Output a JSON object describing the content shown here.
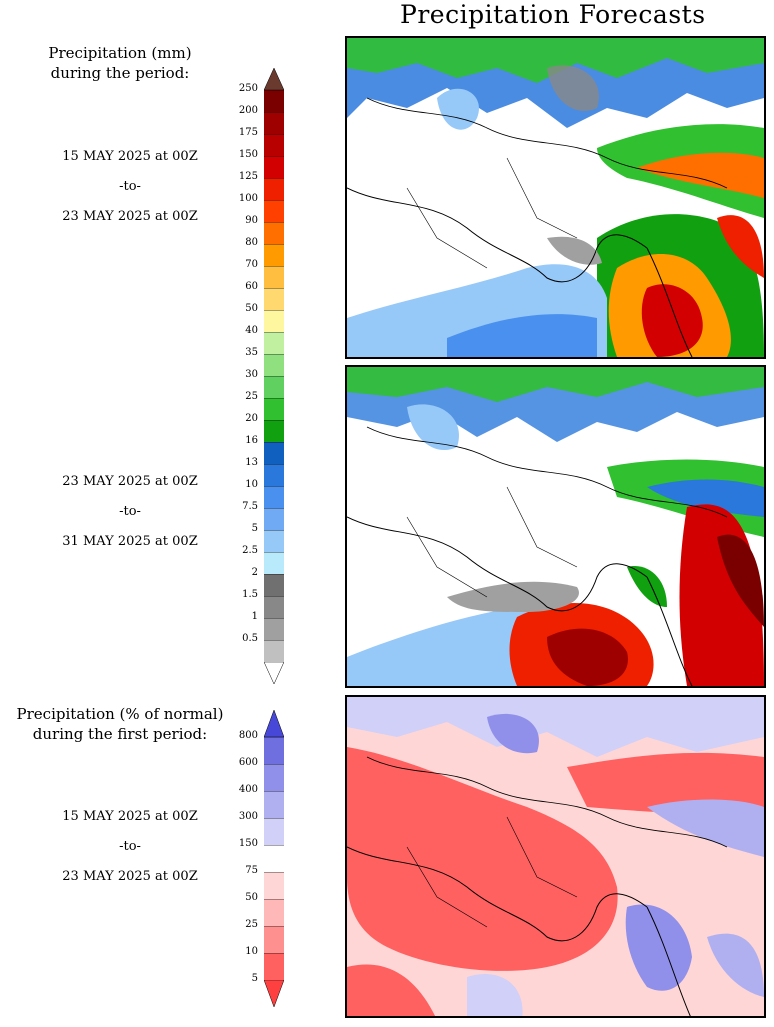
{
  "title": "Precipitation Forecasts",
  "legend_mm": {
    "heading": [
      "Precipitation (mm)",
      "during the period:"
    ],
    "ticks": [
      "250",
      "200",
      "175",
      "150",
      "125",
      "100",
      "90",
      "80",
      "70",
      "60",
      "50",
      "40",
      "35",
      "30",
      "25",
      "20",
      "16",
      "13",
      "10",
      "7.5",
      "5",
      "2.5",
      "2",
      "1.5",
      "1",
      "0.5"
    ],
    "colors": [
      "#7a0000",
      "#9e0000",
      "#b80000",
      "#d20000",
      "#ee2000",
      "#ff4000",
      "#ff6f00",
      "#ff9a00",
      "#ffbe40",
      "#ffd870",
      "#fff6a0",
      "#c0f0a0",
      "#90e080",
      "#60d060",
      "#30c030",
      "#10a010",
      "#1060c0",
      "#2a78dc",
      "#4a90ee",
      "#70aaf4",
      "#96c8f8",
      "#b8eafc",
      "#707070",
      "#888888",
      "#a0a0a0",
      "#c0c0c0"
    ],
    "over_color": "#6b3a2e",
    "under_color": "#ffffff"
  },
  "legend_pct": {
    "heading": [
      "Precipitation (% of normal)",
      "during the first period:"
    ],
    "ticks": [
      "800",
      "600",
      "400",
      "300",
      "150",
      "75",
      "50",
      "25",
      "10",
      "5"
    ],
    "colors": [
      "#6f6fe0",
      "#9090ea",
      "#b0b0f0",
      "#d0d0f8",
      "#ffffff",
      "#ffd6d6",
      "#ffb8b8",
      "#ff9090",
      "#ff6060"
    ],
    "over_color": "#4848d8",
    "under_color": "#ff4040"
  },
  "periods": [
    {
      "start": "15 MAY 2025 at 00Z",
      "sep": "-to-",
      "end": "23 MAY 2025 at 00Z"
    },
    {
      "start": "23 MAY 2025 at 00Z",
      "sep": "-to-",
      "end": "31 MAY 2025 at 00Z"
    },
    {
      "start": "15 MAY 2025 at 00Z",
      "sep": "-to-",
      "end": "23 MAY 2025 at 00Z"
    }
  ]
}
